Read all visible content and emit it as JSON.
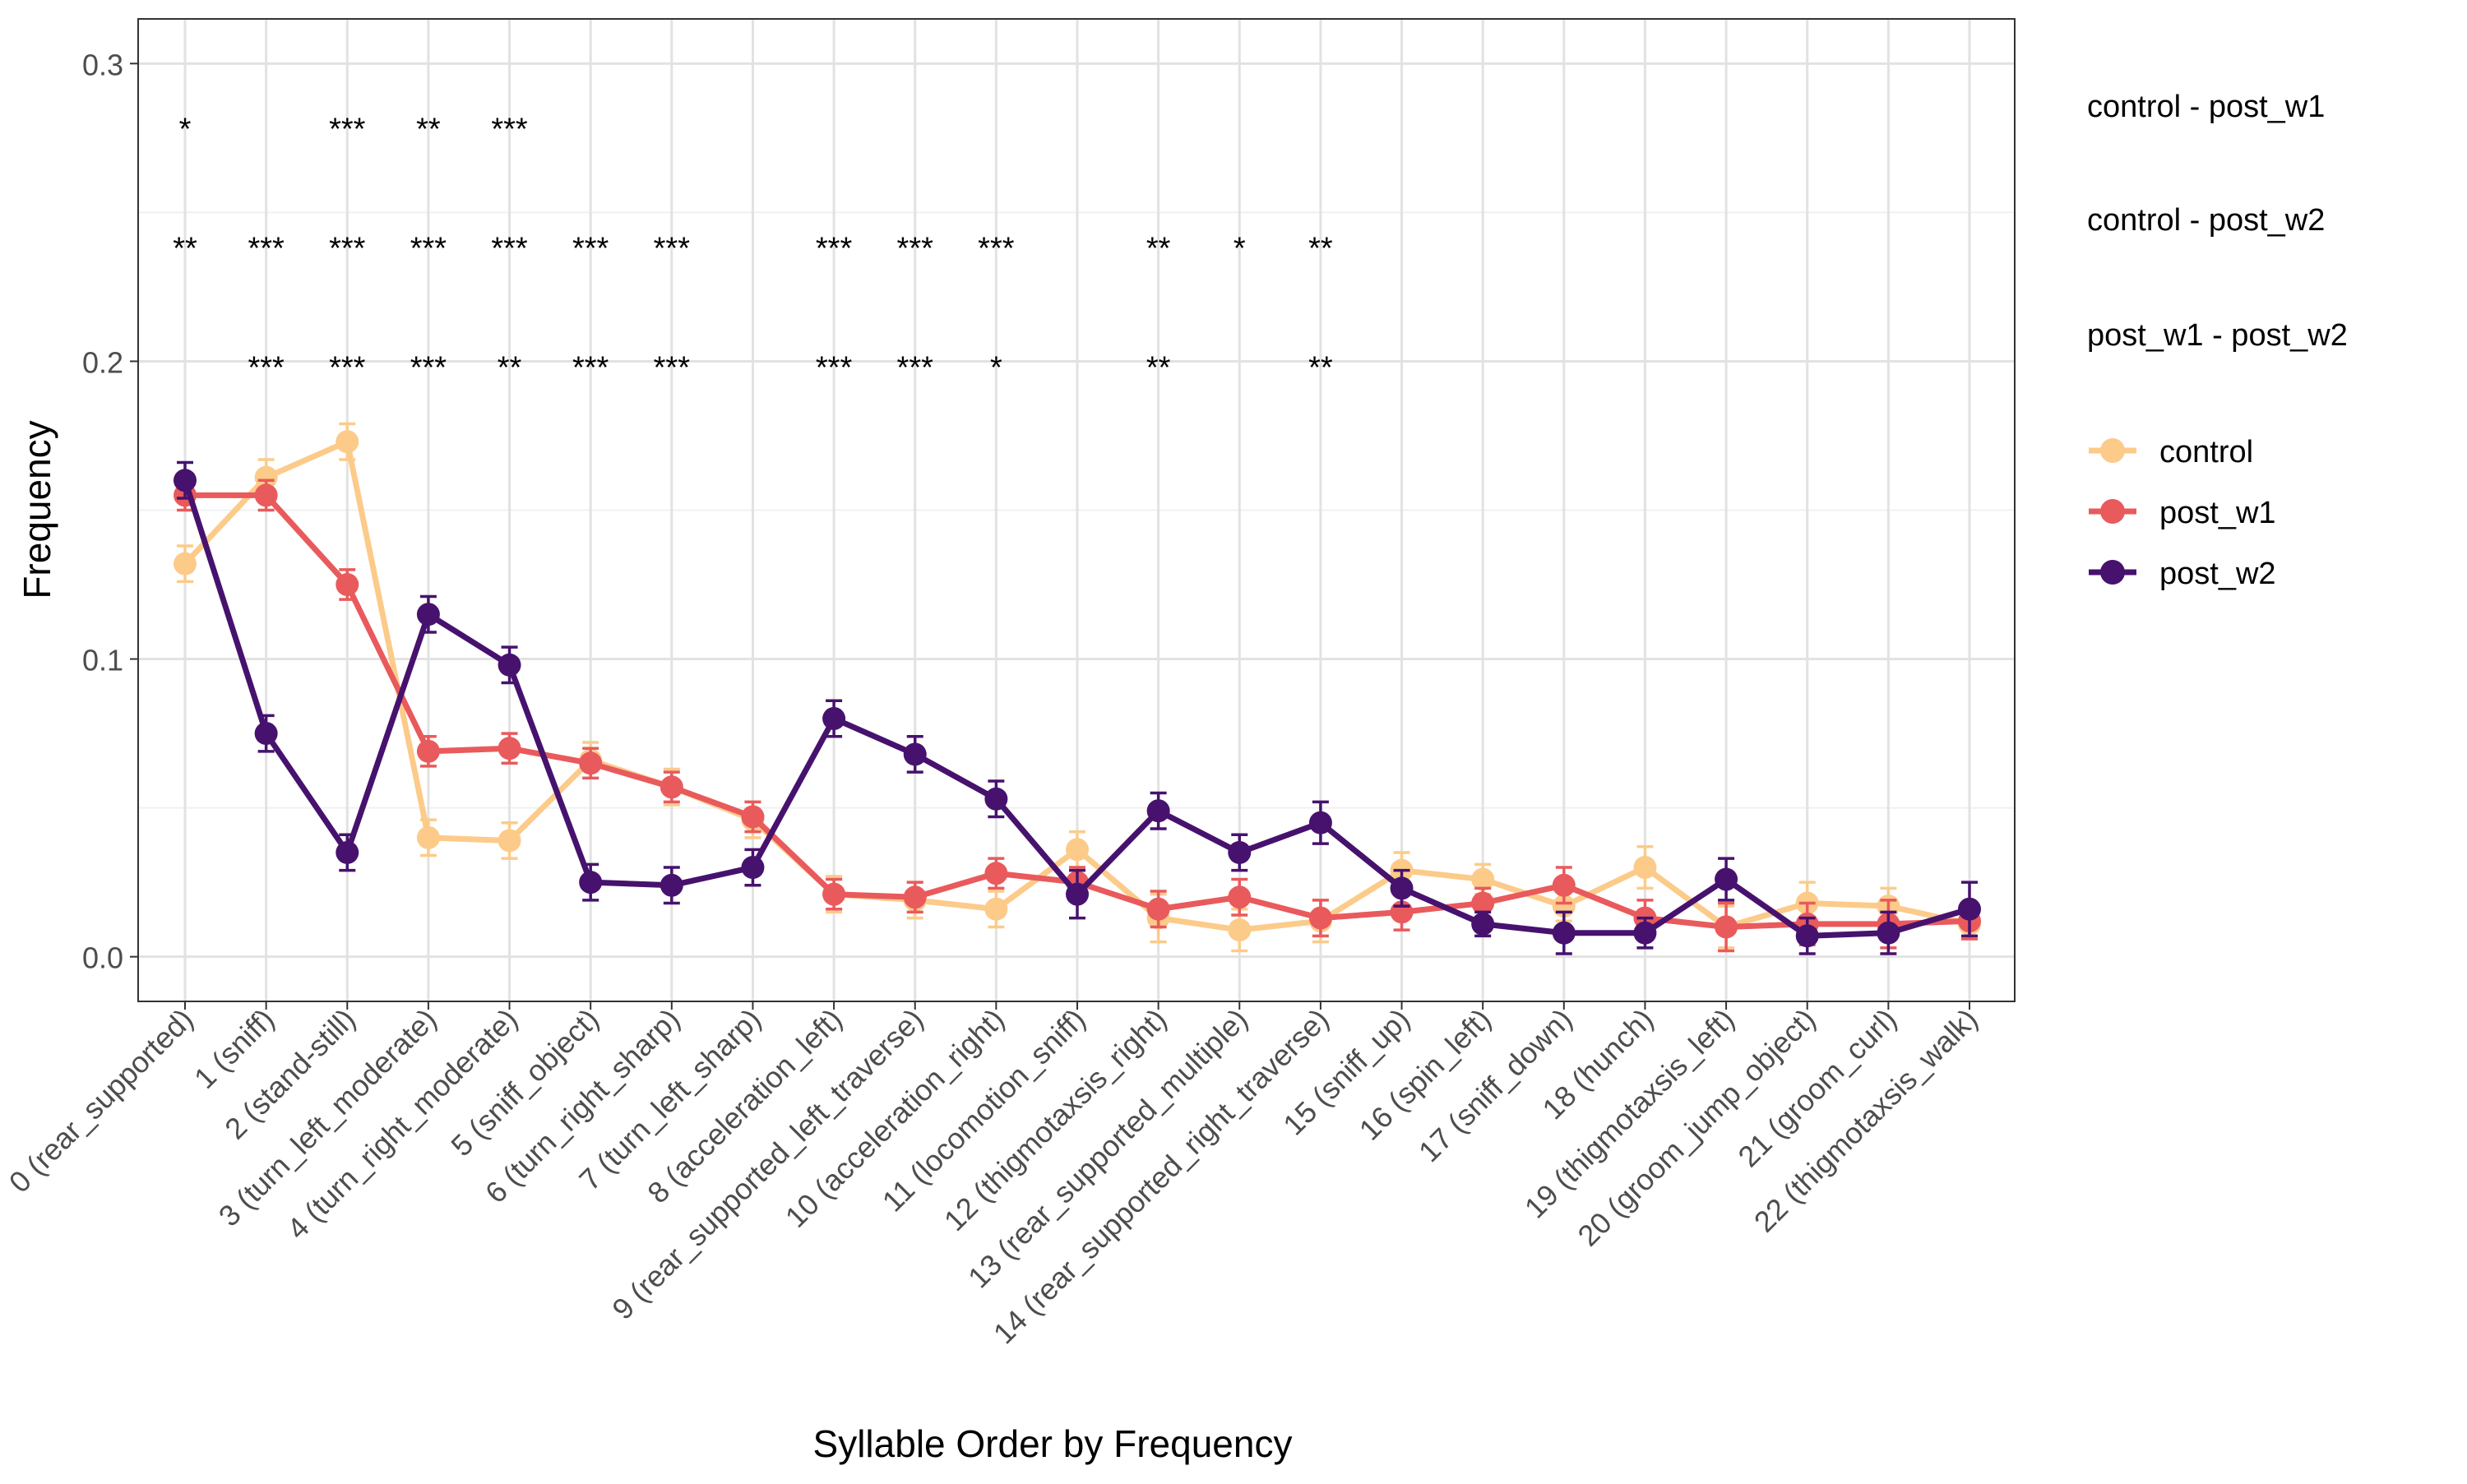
{
  "chart_data": {
    "type": "line",
    "xlabel": "Syllable Order by Frequency",
    "ylabel": "Frequency",
    "ylim": [
      -0.015,
      0.315
    ],
    "yticks": [
      0.0,
      0.1,
      0.2,
      0.3
    ],
    "ytick_labels": [
      "0.0",
      "0.1",
      "0.2",
      "0.3"
    ],
    "grid": true,
    "legend_position": "right",
    "categories": [
      "0 (rear_supported)",
      "1 (sniff)",
      "2 (stand-still)",
      "3 (turn_left_moderate)",
      "4 (turn_right_moderate)",
      "5 (sniff_object)",
      "6 (turn_right_sharp)",
      "7 (turn_left_sharp)",
      "8 (acceleration_left)",
      "9 (rear_supported_left_traverse)",
      "10 (acceleration_right)",
      "11 (locomotion_sniff)",
      "12 (thigmotaxsis_right)",
      "13 (rear_supported_multiple)",
      "14 (rear_supported_right_traverse)",
      "15 (sniff_up)",
      "16 (spin_left)",
      "17 (sniff_down)",
      "18 (hunch)",
      "19 (thigmotaxsis_left)",
      "20 (groom_jump_object)",
      "21 (groom_curl)",
      "22 (thigmotaxsis_walk)"
    ],
    "series": [
      {
        "name": "control",
        "color": "#FCCB8A",
        "values": [
          0.132,
          0.161,
          0.173,
          0.04,
          0.039,
          0.066,
          0.057,
          0.046,
          0.021,
          0.019,
          0.016,
          0.036,
          0.013,
          0.009,
          0.012,
          0.029,
          0.026,
          0.017,
          0.03,
          0.01,
          0.018,
          0.017,
          0.011
        ],
        "errors": [
          0.006,
          0.006,
          0.006,
          0.006,
          0.006,
          0.006,
          0.006,
          0.006,
          0.006,
          0.006,
          0.006,
          0.006,
          0.008,
          0.007,
          0.007,
          0.006,
          0.005,
          0.005,
          0.007,
          0.007,
          0.007,
          0.006,
          0.005
        ]
      },
      {
        "name": "post_w1",
        "color": "#E95A5C",
        "values": [
          0.155,
          0.155,
          0.125,
          0.069,
          0.07,
          0.065,
          0.057,
          0.047,
          0.021,
          0.02,
          0.028,
          0.025,
          0.016,
          0.02,
          0.013,
          0.015,
          0.018,
          0.024,
          0.013,
          0.01,
          0.011,
          0.011,
          0.012
        ],
        "errors": [
          0.005,
          0.005,
          0.005,
          0.005,
          0.005,
          0.005,
          0.005,
          0.005,
          0.005,
          0.005,
          0.005,
          0.005,
          0.006,
          0.006,
          0.006,
          0.006,
          0.005,
          0.006,
          0.006,
          0.008,
          0.007,
          0.008,
          0.006
        ]
      },
      {
        "name": "post_w2",
        "color": "#46126E",
        "values": [
          0.16,
          0.075,
          0.035,
          0.115,
          0.098,
          0.025,
          0.024,
          0.03,
          0.08,
          0.068,
          0.053,
          0.021,
          0.049,
          0.035,
          0.045,
          0.023,
          0.011,
          0.008,
          0.008,
          0.026,
          0.007,
          0.008,
          0.016
        ],
        "errors": [
          0.006,
          0.006,
          0.006,
          0.006,
          0.006,
          0.006,
          0.006,
          0.006,
          0.006,
          0.006,
          0.006,
          0.008,
          0.006,
          0.006,
          0.007,
          0.006,
          0.004,
          0.007,
          0.005,
          0.007,
          0.006,
          0.007,
          0.009
        ]
      }
    ],
    "significance": {
      "rows": [
        {
          "label": "control - post_w1",
          "y": 0.28,
          "marks": [
            "*",
            "",
            "***",
            "**",
            "***",
            "",
            "",
            "",
            "",
            "",
            "",
            "",
            "",
            "",
            "",
            "",
            "",
            "",
            "",
            "",
            "",
            "",
            ""
          ]
        },
        {
          "label": "control - post_w2",
          "y": 0.24,
          "marks": [
            "**",
            "***",
            "***",
            "***",
            "***",
            "***",
            "***",
            "",
            "***",
            "***",
            "***",
            "",
            "**",
            "*",
            "**",
            "",
            "",
            "",
            "",
            "",
            "",
            "",
            ""
          ]
        },
        {
          "label": "post_w1 - post_w2",
          "y": 0.2,
          "marks": [
            "",
            "***",
            "***",
            "***",
            "**",
            "***",
            "***",
            "",
            "***",
            "***",
            "*",
            "",
            "**",
            "",
            "**",
            "",
            "",
            "",
            "",
            "",
            "",
            "",
            ""
          ]
        }
      ]
    }
  }
}
